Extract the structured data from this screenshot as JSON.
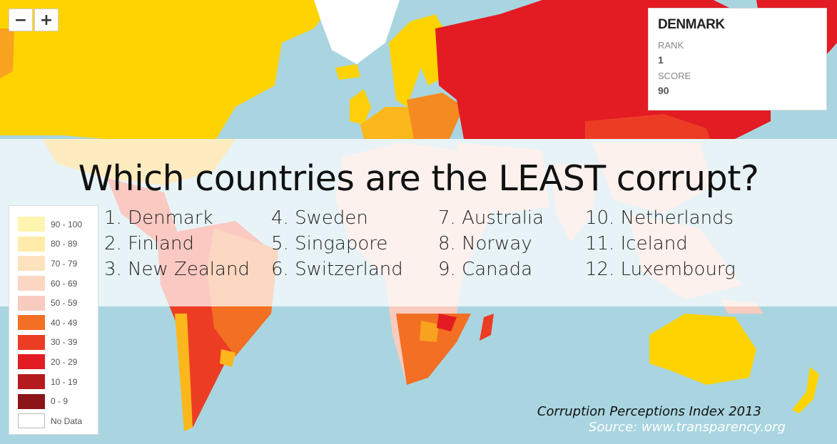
{
  "zoom": {
    "out_label": "−",
    "in_label": "+"
  },
  "info": {
    "country": "DENMARK",
    "rank_label": "RANK",
    "rank_value": "1",
    "score_label": "SCORE",
    "score_value": "90"
  },
  "headline": "Which countries are the LEAST corrupt?",
  "rankings": [
    [
      "1. Denmark",
      "2. Finland",
      "3. New Zealand"
    ],
    [
      "4. Sweden",
      "5. Singapore",
      "6. Switzerland"
    ],
    [
      "7. Australia",
      "8. Norway",
      "9. Canada"
    ],
    [
      "10. Netherlands",
      "11. Iceland",
      "12. Luxembourg"
    ]
  ],
  "legend": [
    {
      "label": "90 - 100",
      "color": "#fff4b0"
    },
    {
      "label": "80 - 89",
      "color": "#ffecaa"
    },
    {
      "label": "70 - 79",
      "color": "#fde2bd"
    },
    {
      "label": "60 - 69",
      "color": "#fbd6c3"
    },
    {
      "label": "50 - 59",
      "color": "#f8cbbf"
    },
    {
      "label": "40 - 49",
      "color": "#f26f23"
    },
    {
      "label": "30 - 39",
      "color": "#ec3d24"
    },
    {
      "label": "20 - 29",
      "color": "#e31b23"
    },
    {
      "label": "10 - 19",
      "color": "#b51a1f"
    },
    {
      "label": "0 - 9",
      "color": "#8b1518"
    },
    {
      "label": "No Data",
      "color": "#ffffff"
    }
  ],
  "caption": "Corruption Perceptions Index 2013",
  "source": "Source: www.transparency.org",
  "colors": {
    "ocean": "#a9d5e0",
    "score_90_100": "#ffd300",
    "score_80_89": "#ffcf0a",
    "score_70_79": "#fbb71b",
    "score_60_69": "#f9a21f",
    "score_50_59": "#f58a22",
    "score_40_49": "#f26f23",
    "score_30_39": "#ec3d24",
    "score_20_29": "#e31b23"
  }
}
